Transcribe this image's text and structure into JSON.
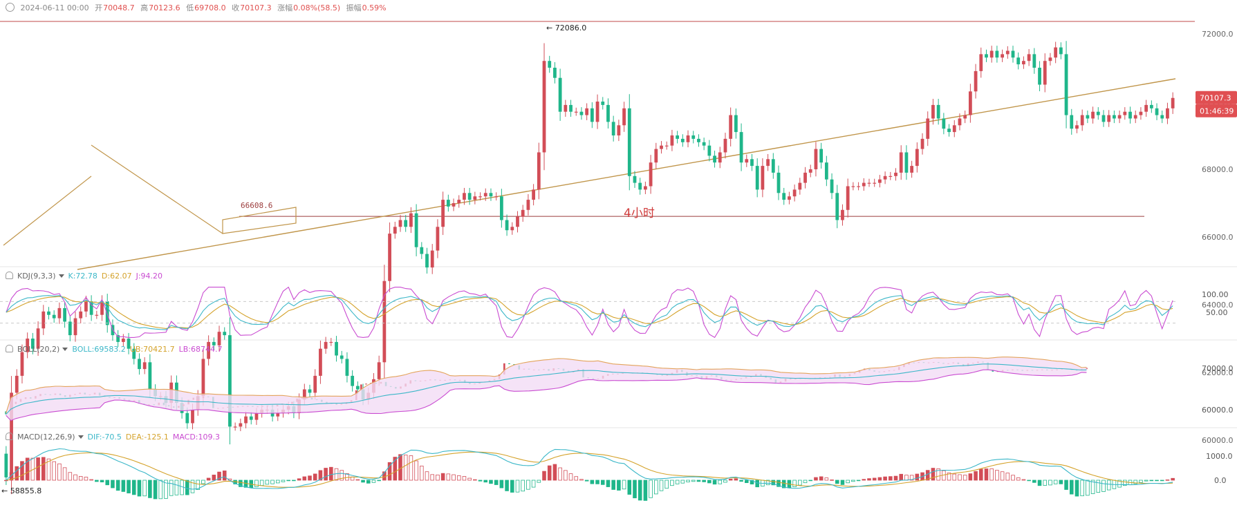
{
  "header": {
    "date": "2024-06-11 00:00",
    "open_label": "开",
    "open": "70048.7",
    "high_label": "高",
    "high": "70123.6",
    "low_label": "低",
    "low": "69708.0",
    "close_label": "收",
    "close": "70107.3",
    "change_label": "涨幅",
    "change": "0.08%(58.5)",
    "amp_label": "振幅",
    "amp": "0.59%"
  },
  "chart_data": {
    "type": "candlestick",
    "timeframe_label": "4小时",
    "price_axis_ticks": [
      "72000.0",
      "70000.0",
      "68000.0",
      "66000.0",
      "64000.0",
      "62000.0",
      "60000.0"
    ],
    "price_tick_values": [
      72000,
      70000,
      68000,
      66000,
      64000,
      62000,
      60000
    ],
    "current_price": "70107.3",
    "countdown": "01:46:39",
    "high_marker": {
      "value": 72086.0,
      "label": "72086.0"
    },
    "low_marker": {
      "value": 58855.8,
      "label": "58855.8"
    },
    "support_line": {
      "value": 66608.6,
      "label": "66608.6"
    },
    "kdj": {
      "label": "KDJ(9,3,3)",
      "k": "K:72.78",
      "d": "D:62.07",
      "j": "J:94.20",
      "ticks": [
        "100.00",
        "50.00"
      ]
    },
    "boll": {
      "label": "BOLL(20,2)",
      "boll": "BOLL:69583.2",
      "ub": "UB:70421.7",
      "lb": "LB:68744.7",
      "ticks": [
        "70000.0",
        "60000.0"
      ]
    },
    "macd": {
      "label": "MACD(12,26,9)",
      "dif": "DIF:-70.5",
      "dea": "DEA:-125.1",
      "macd": "MACD:109.3",
      "ticks": [
        "1000.0",
        "0.0"
      ]
    },
    "closes": [
      58900,
      61400,
      61900,
      62600,
      63000,
      62700,
      63300,
      63800,
      63700,
      63600,
      63900,
      63500,
      63100,
      63600,
      63800,
      64100,
      63700,
      63700,
      64100,
      63400,
      63100,
      62900,
      63000,
      62700,
      62400,
      62100,
      62300,
      61500,
      61300,
      61300,
      61100,
      61700,
      61100,
      60800,
      60500,
      60900,
      61300,
      62400,
      62900,
      62800,
      63200,
      63100,
      60400,
      60400,
      60500,
      60700,
      60600,
      60800,
      60900,
      60900,
      60700,
      60800,
      60900,
      61000,
      60800,
      61200,
      61500,
      61400,
      61900,
      62700,
      62900,
      62900,
      62500,
      62400,
      61900,
      61600,
      61500,
      61200,
      61400,
      61800,
      62300,
      64700,
      66100,
      66300,
      66500,
      66300,
      66700,
      65700,
      65500,
      65100,
      65600,
      66300,
      67100,
      66900,
      67000,
      67100,
      67300,
      67100,
      67200,
      67200,
      67300,
      67200,
      67200,
      66500,
      66200,
      66300,
      66600,
      66800,
      67100,
      67400,
      68500,
      71200,
      71000,
      70700,
      69700,
      69900,
      69700,
      69700,
      69600,
      69800,
      69400,
      70000,
      69900,
      69400,
      69000,
      69300,
      69800,
      67800,
      67600,
      67400,
      67500,
      68200,
      68600,
      68700,
      68700,
      69000,
      68900,
      68800,
      69000,
      68900,
      68800,
      68700,
      68400,
      68200,
      68500,
      68900,
      69600,
      69100,
      68200,
      68300,
      68100,
      67400,
      68100,
      68300,
      67900,
      67300,
      67100,
      67200,
      67400,
      67600,
      67900,
      68000,
      68600,
      68200,
      67700,
      67300,
      66500,
      66800,
      67500,
      67500,
      67500,
      67600,
      67600,
      67600,
      67700,
      67800,
      67800,
      67900,
      68500,
      67900,
      68100,
      68600,
      68900,
      69500,
      69900,
      69500,
      69200,
      69100,
      69300,
      69500,
      69600,
      70300,
      70900,
      71400,
      71300,
      71500,
      71300,
      71400,
      71500,
      71300,
      71100,
      71200,
      71400,
      71000,
      70500,
      71200,
      71300,
      71600,
      71400,
      69600,
      69200,
      69300,
      69600,
      69500,
      69700,
      69600,
      69400,
      69600,
      69500,
      69600,
      69700,
      69500,
      69600,
      69700,
      69900,
      69800,
      69600,
      69500,
      69800,
      70107.3
    ]
  }
}
